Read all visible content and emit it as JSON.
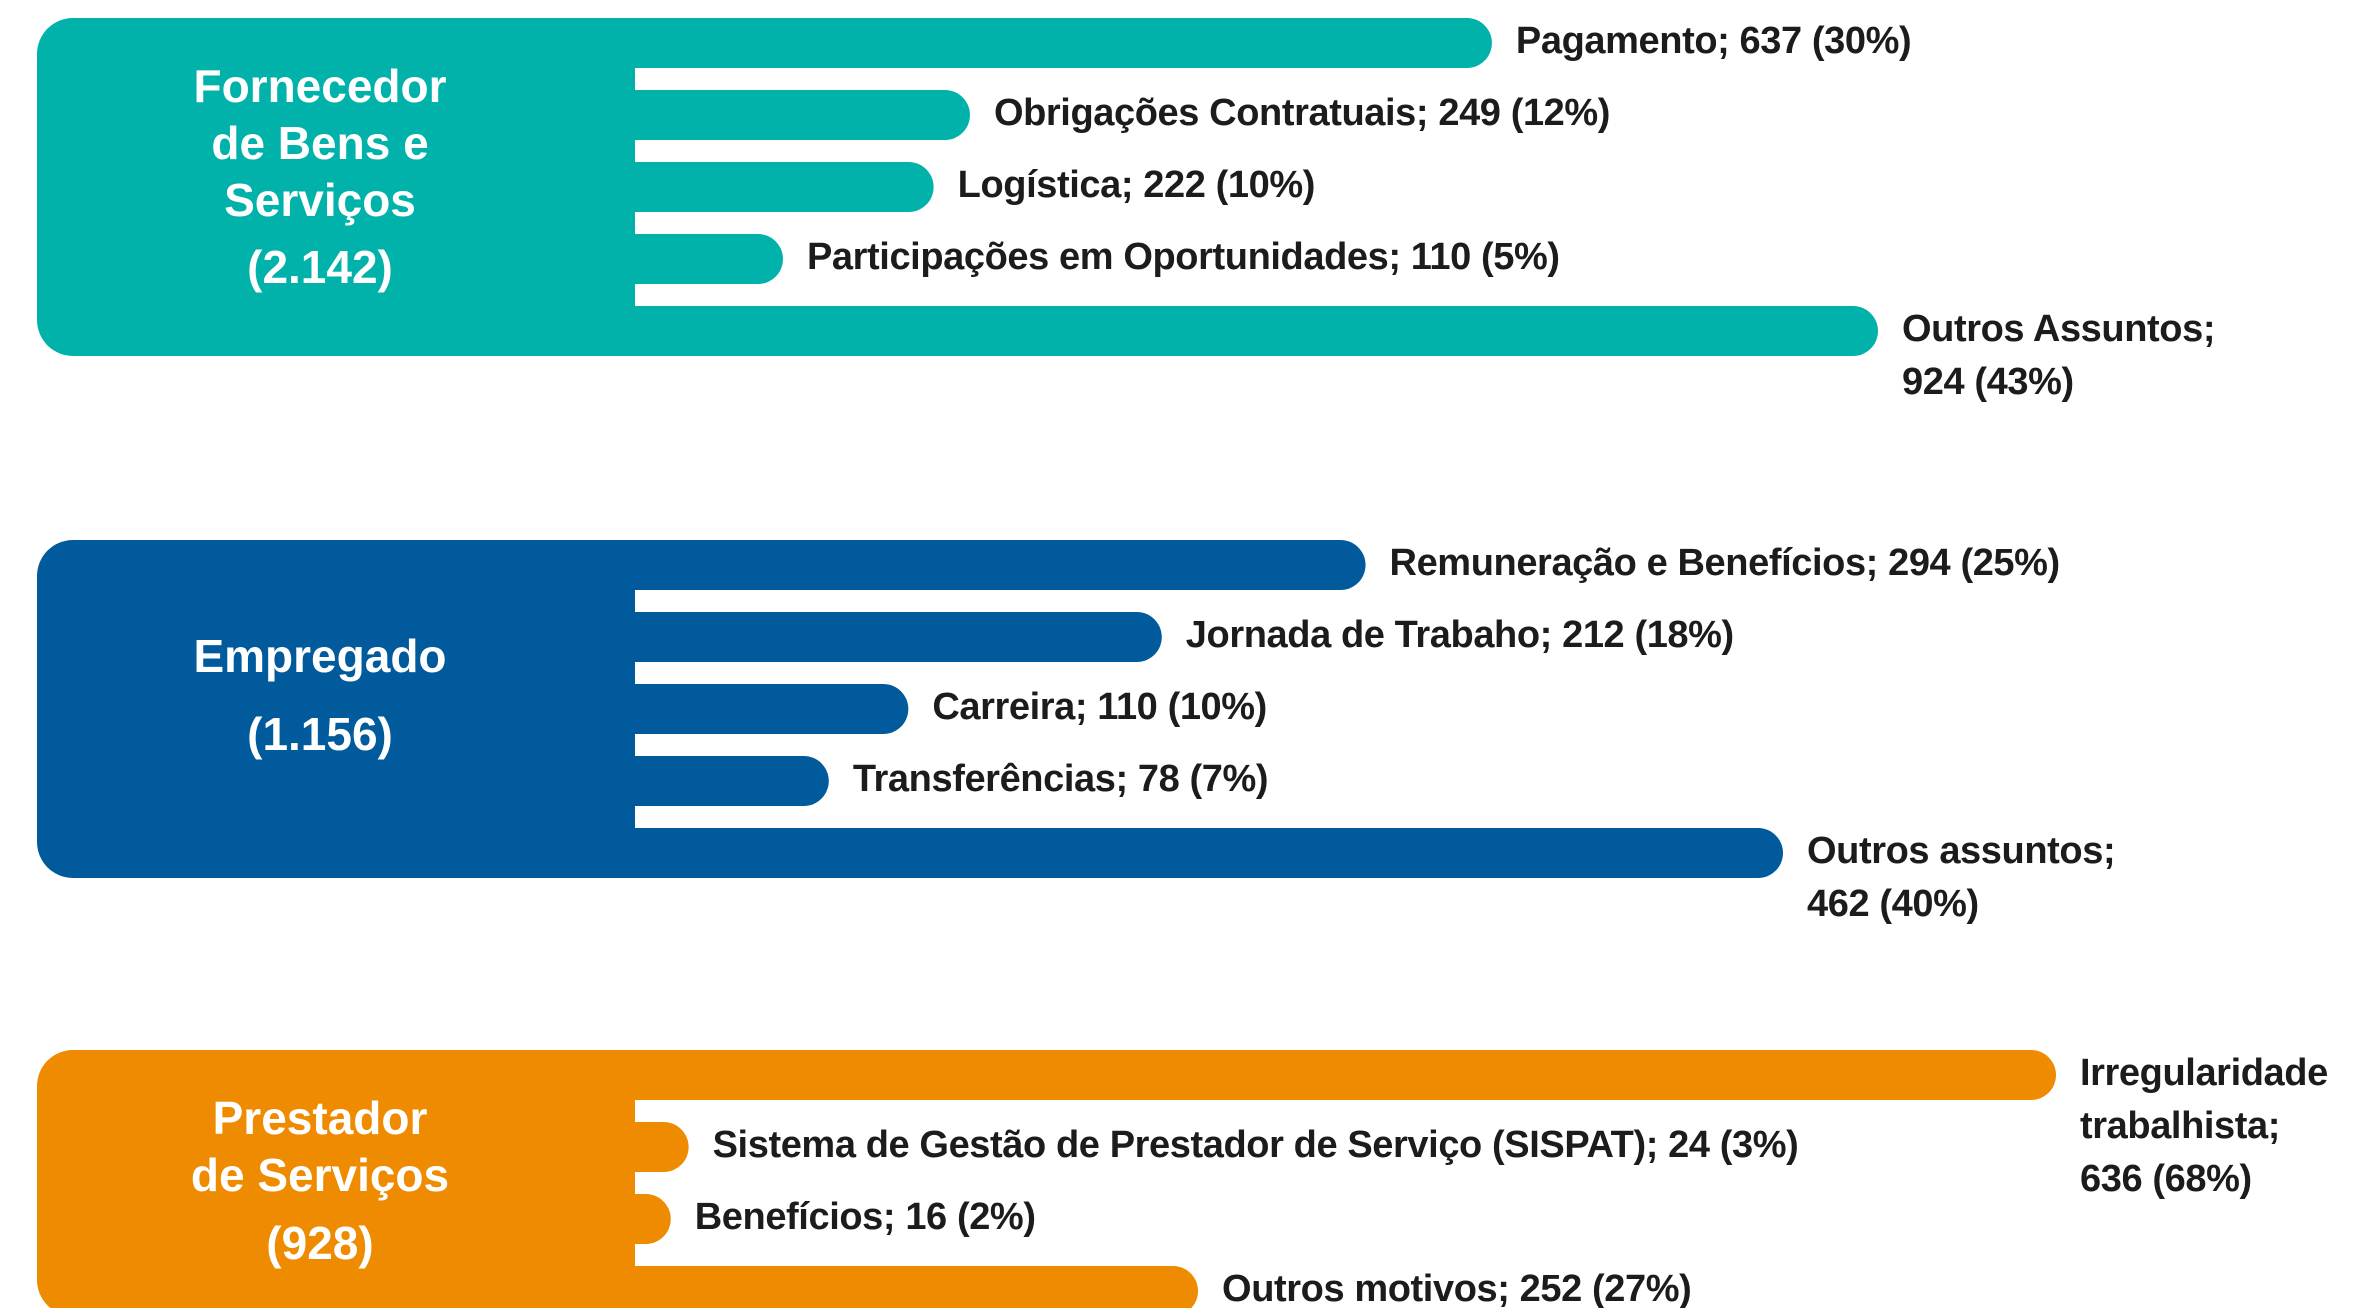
{
  "chart_data": [
    {
      "type": "bar",
      "title": "Fornecedor\nde Bens e\nServiços",
      "subtitle": "(2.142)",
      "color": "#00b2a9",
      "values": [
        637,
        249,
        222,
        110,
        924
      ],
      "value_labels": [
        "Pagamento; 637 (30%)",
        "Obrigações Contratuais; 249 (12%)",
        "Logística; 222 (10%)",
        "Participações em Oportunidades; 110 (5%)",
        "Outros Assuntos;\n924 (43%)"
      ]
    },
    {
      "type": "bar",
      "title": "Empregado",
      "subtitle": "(1.156)",
      "color": "#005a9c",
      "values": [
        294,
        212,
        110,
        78,
        462
      ],
      "value_labels": [
        "Remuneração e Benefícios; 294 (25%)",
        "Jornada de Trabaho; 212 (18%)",
        "Carreira; 110 (10%)",
        "Transferências; 78 (7%)",
        "Outros assuntos;\n462 (40%)"
      ]
    },
    {
      "type": "bar",
      "title": "Prestador\nde Serviços",
      "subtitle": "(928)",
      "color": "#ee8b00",
      "values": [
        636,
        24,
        16,
        252
      ],
      "value_labels": [
        "Irregularidade\ntrabalhista;\n636 (68%)",
        "Sistema de Gestão de Prestador de Serviço (SISPAT); 24 (3%)",
        "Benefícios; 16 (2%)",
        "Outros motivos; 252 (27%)"
      ]
    }
  ]
}
